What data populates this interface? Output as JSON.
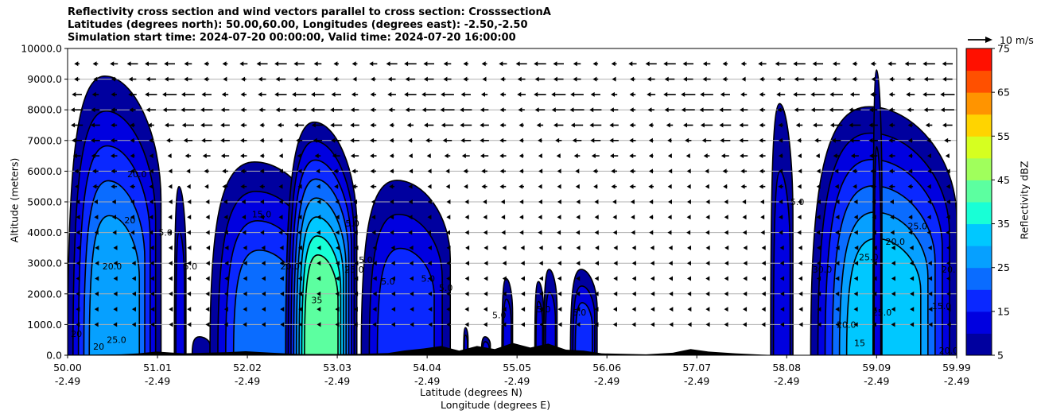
{
  "title_lines": [
    "Reflectivity cross section and wind vectors parallel to cross section: CrosssectionA",
    "Latitudes (degrees north): 50.00,60.00, Longitudes (degrees east): -2.50,-2.50",
    "Simulation start time: 2024-07-20 00:00:00, Valid time: 2024-07-20 16:00:00"
  ],
  "axes": {
    "ylabel": "Altitude (meters)",
    "xlabel_line1": "Latitude (degrees N)",
    "xlabel_line2": "Longitude (degrees E)",
    "colorbar_label": "Reflectivity dBZ",
    "quiver_key_label": "10 m/s"
  },
  "chart_data": {
    "type": "heatmap",
    "subtype": "filled contour cross section with wind vectors",
    "ylim": [
      0,
      10000
    ],
    "yticks": [
      "0.0",
      "1000.0",
      "2000.0",
      "3000.0",
      "4000.0",
      "5000.0",
      "6000.0",
      "7000.0",
      "8000.0",
      "9000.0",
      "10000.0"
    ],
    "xlim": [
      50.0,
      59.99
    ],
    "xticks": [
      {
        "lat": "50.00",
        "lon": "-2.49"
      },
      {
        "lat": "51.01",
        "lon": "-2.49"
      },
      {
        "lat": "52.02",
        "lon": "-2.49"
      },
      {
        "lat": "53.03",
        "lon": "-2.49"
      },
      {
        "lat": "54.04",
        "lon": "-2.49"
      },
      {
        "lat": "55.05",
        "lon": "-2.49"
      },
      {
        "lat": "56.06",
        "lon": "-2.49"
      },
      {
        "lat": "57.07",
        "lon": "-2.49"
      },
      {
        "lat": "58.08",
        "lon": "-2.49"
      },
      {
        "lat": "59.09",
        "lon": "-2.49"
      },
      {
        "lat": "59.99",
        "lon": "-2.49"
      }
    ],
    "grid": "horizontal",
    "colorbar": {
      "levels": [
        5,
        10,
        15,
        20,
        25,
        30,
        35,
        40,
        45,
        50,
        55,
        60,
        65,
        70,
        75
      ],
      "tick_labels": [
        "5",
        "15",
        "25",
        "35",
        "45",
        "55",
        "65",
        "75"
      ],
      "colors": [
        "#00009f",
        "#0000e0",
        "#0a28ff",
        "#0a6cff",
        "#06a0ff",
        "#00c8ff",
        "#18ffd6",
        "#5cffa0",
        "#a0ff5c",
        "#d6ff20",
        "#ffd400",
        "#ff9400",
        "#ff5000",
        "#ff1000",
        "#a80000"
      ]
    },
    "cells": [
      {
        "lat_start": 50.0,
        "lat_end": 51.05,
        "top_m": 9100,
        "peak_dbz": 25
      },
      {
        "lat_start": 51.2,
        "lat_end": 51.33,
        "top_m": 5500,
        "peak_dbz": 10
      },
      {
        "lat_start": 51.4,
        "lat_end": 51.6,
        "top_m": 600,
        "peak_dbz": 5
      },
      {
        "lat_start": 51.6,
        "lat_end": 52.85,
        "top_m": 6300,
        "peak_dbz": 20
      },
      {
        "lat_start": 52.45,
        "lat_end": 53.25,
        "top_m": 7600,
        "peak_dbz": 40
      },
      {
        "lat_start": 53.3,
        "lat_end": 54.3,
        "top_m": 5700,
        "peak_dbz": 15
      },
      {
        "lat_start": 54.45,
        "lat_end": 54.5,
        "top_m": 900,
        "peak_dbz": 10
      },
      {
        "lat_start": 54.65,
        "lat_end": 54.75,
        "top_m": 600,
        "peak_dbz": 10
      },
      {
        "lat_start": 54.88,
        "lat_end": 55.0,
        "top_m": 2500,
        "peak_dbz": 10
      },
      {
        "lat_start": 55.25,
        "lat_end": 55.35,
        "top_m": 2400,
        "peak_dbz": 10
      },
      {
        "lat_start": 55.35,
        "lat_end": 55.5,
        "top_m": 2800,
        "peak_dbz": 10
      },
      {
        "lat_start": 55.65,
        "lat_end": 55.95,
        "top_m": 2800,
        "peak_dbz": 15
      },
      {
        "lat_start": 57.9,
        "lat_end": 58.15,
        "top_m": 8200,
        "peak_dbz": 10
      },
      {
        "lat_start": 58.35,
        "lat_end": 59.99,
        "top_m": 8100,
        "peak_dbz": 30
      },
      {
        "lat_start": 59.05,
        "lat_end": 59.15,
        "top_m": 9300,
        "peak_dbz": 10
      }
    ],
    "contour_labels": [
      {
        "text": "5.0",
        "lat": 51.38,
        "alt": 2800
      },
      {
        "text": "20.0",
        "lat": 50.78,
        "alt": 5800
      },
      {
        "text": "20",
        "lat": 50.7,
        "alt": 4300
      },
      {
        "text": "5.0",
        "lat": 51.1,
        "alt": 3900
      },
      {
        "text": "20.0",
        "lat": 50.5,
        "alt": 2800
      },
      {
        "text": "25.0",
        "lat": 50.55,
        "alt": 400
      },
      {
        "text": "20",
        "lat": 50.35,
        "alt": 180
      },
      {
        "text": "20",
        "lat": 50.1,
        "alt": 600
      },
      {
        "text": "15.0",
        "lat": 52.18,
        "alt": 4500
      },
      {
        "text": "20.0",
        "lat": 52.5,
        "alt": 2800
      },
      {
        "text": "25.0",
        "lat": 53.22,
        "alt": 2700
      },
      {
        "text": "35",
        "lat": 52.8,
        "alt": 1700
      },
      {
        "text": "5.0",
        "lat": 53.35,
        "alt": 3000
      },
      {
        "text": "5.0",
        "lat": 53.2,
        "alt": 4200
      },
      {
        "text": "5.0",
        "lat": 53.6,
        "alt": 2300
      },
      {
        "text": "5.0",
        "lat": 54.05,
        "alt": 2400
      },
      {
        "text": "5.0",
        "lat": 54.25,
        "alt": 2100
      },
      {
        "text": "5.0",
        "lat": 54.85,
        "alt": 1200
      },
      {
        "text": "5.0",
        "lat": 55.35,
        "alt": 1400
      },
      {
        "text": "5.0",
        "lat": 55.75,
        "alt": 1300
      },
      {
        "text": "5.0",
        "lat": 58.2,
        "alt": 4900
      },
      {
        "text": "30.0",
        "lat": 58.48,
        "alt": 2700
      },
      {
        "text": "25.0",
        "lat": 59.0,
        "alt": 3100
      },
      {
        "text": "20.0",
        "lat": 59.3,
        "alt": 3600
      },
      {
        "text": "25.0",
        "lat": 59.55,
        "alt": 4100
      },
      {
        "text": "20.0",
        "lat": 59.93,
        "alt": 2700
      },
      {
        "text": "15.0",
        "lat": 59.82,
        "alt": 1500
      },
      {
        "text": "20.0",
        "lat": 59.9,
        "alt": 50
      },
      {
        "text": "20.0",
        "lat": 58.75,
        "alt": 900
      },
      {
        "text": "25.0",
        "lat": 59.15,
        "alt": 1300
      },
      {
        "text": "15",
        "lat": 58.9,
        "alt": 300
      }
    ],
    "terrain": [
      [
        50.0,
        0
      ],
      [
        50.6,
        30
      ],
      [
        50.8,
        60
      ],
      [
        51.0,
        120
      ],
      [
        51.3,
        60
      ],
      [
        51.8,
        100
      ],
      [
        52.0,
        130
      ],
      [
        52.3,
        80
      ],
      [
        52.6,
        40
      ],
      [
        53.2,
        40
      ],
      [
        53.6,
        70
      ],
      [
        53.8,
        160
      ],
      [
        54.0,
        220
      ],
      [
        54.2,
        300
      ],
      [
        54.4,
        150
      ],
      [
        54.6,
        300
      ],
      [
        54.8,
        200
      ],
      [
        55.0,
        400
      ],
      [
        55.2,
        250
      ],
      [
        55.4,
        380
      ],
      [
        55.6,
        180
      ],
      [
        55.8,
        150
      ],
      [
        56.0,
        60
      ],
      [
        56.5,
        30
      ],
      [
        56.8,
        80
      ],
      [
        57.0,
        200
      ],
      [
        57.2,
        120
      ],
      [
        57.5,
        60
      ],
      [
        57.8,
        20
      ],
      [
        58.0,
        0
      ]
    ],
    "wind_vectors": [
      {
        "alt": 9500,
        "u": -6
      },
      {
        "alt": 9000,
        "u": -5
      },
      {
        "alt": 8500,
        "u": -7
      },
      {
        "alt": 8000,
        "u": -7
      },
      {
        "alt": 7500,
        "u": -6
      },
      {
        "alt": 7000,
        "u": -5
      },
      {
        "alt": 6500,
        "u": -4
      },
      {
        "alt": 6000,
        "u": -3
      },
      {
        "alt": 5500,
        "u": -3
      },
      {
        "alt": 5000,
        "u": -2
      },
      {
        "alt": 4500,
        "u": -2
      },
      {
        "alt": 4000,
        "u": -2
      },
      {
        "alt": 3500,
        "u": -1
      },
      {
        "alt": 3000,
        "u": -1
      },
      {
        "alt": 2500,
        "u": -1
      },
      {
        "alt": 2000,
        "u": -1
      },
      {
        "alt": 1500,
        "u": -1
      },
      {
        "alt": 1000,
        "u": -1
      }
    ]
  }
}
